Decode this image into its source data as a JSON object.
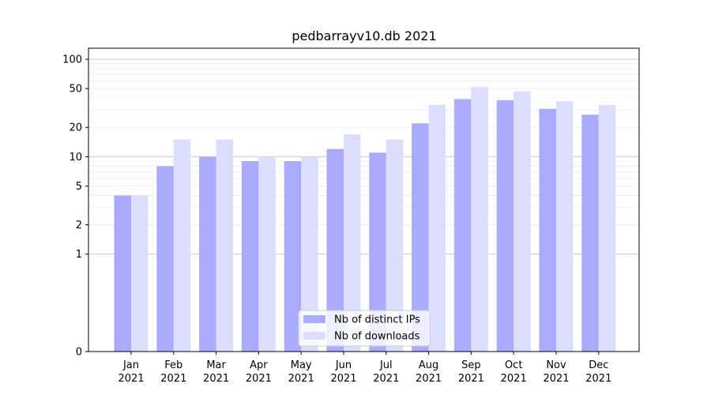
{
  "chart_data": {
    "type": "bar",
    "title": "pedbarrayv10.db 2021",
    "xlabel": "",
    "ylabel": "",
    "yscale": "symlog",
    "ylim": [
      0,
      130
    ],
    "yticks": [
      0,
      1,
      2,
      5,
      10,
      20,
      50,
      100
    ],
    "categories": [
      [
        "Jan",
        "2021"
      ],
      [
        "Feb",
        "2021"
      ],
      [
        "Mar",
        "2021"
      ],
      [
        "Apr",
        "2021"
      ],
      [
        "May",
        "2021"
      ],
      [
        "Jun",
        "2021"
      ],
      [
        "Jul",
        "2021"
      ],
      [
        "Aug",
        "2021"
      ],
      [
        "Sep",
        "2021"
      ],
      [
        "Oct",
        "2021"
      ],
      [
        "Nov",
        "2021"
      ],
      [
        "Dec",
        "2021"
      ]
    ],
    "series": [
      {
        "name": "Nb of distinct IPs",
        "color": "#aaaaff",
        "values": [
          4,
          8,
          10,
          9,
          9,
          12,
          11,
          22,
          39,
          38,
          31,
          27
        ]
      },
      {
        "name": "Nb of downloads",
        "color": "#ddddff",
        "values": [
          4,
          15,
          15,
          10,
          10,
          17,
          15,
          34,
          52,
          47,
          37,
          34
        ]
      }
    ],
    "grid": true,
    "legend_position": "bottom-center"
  }
}
